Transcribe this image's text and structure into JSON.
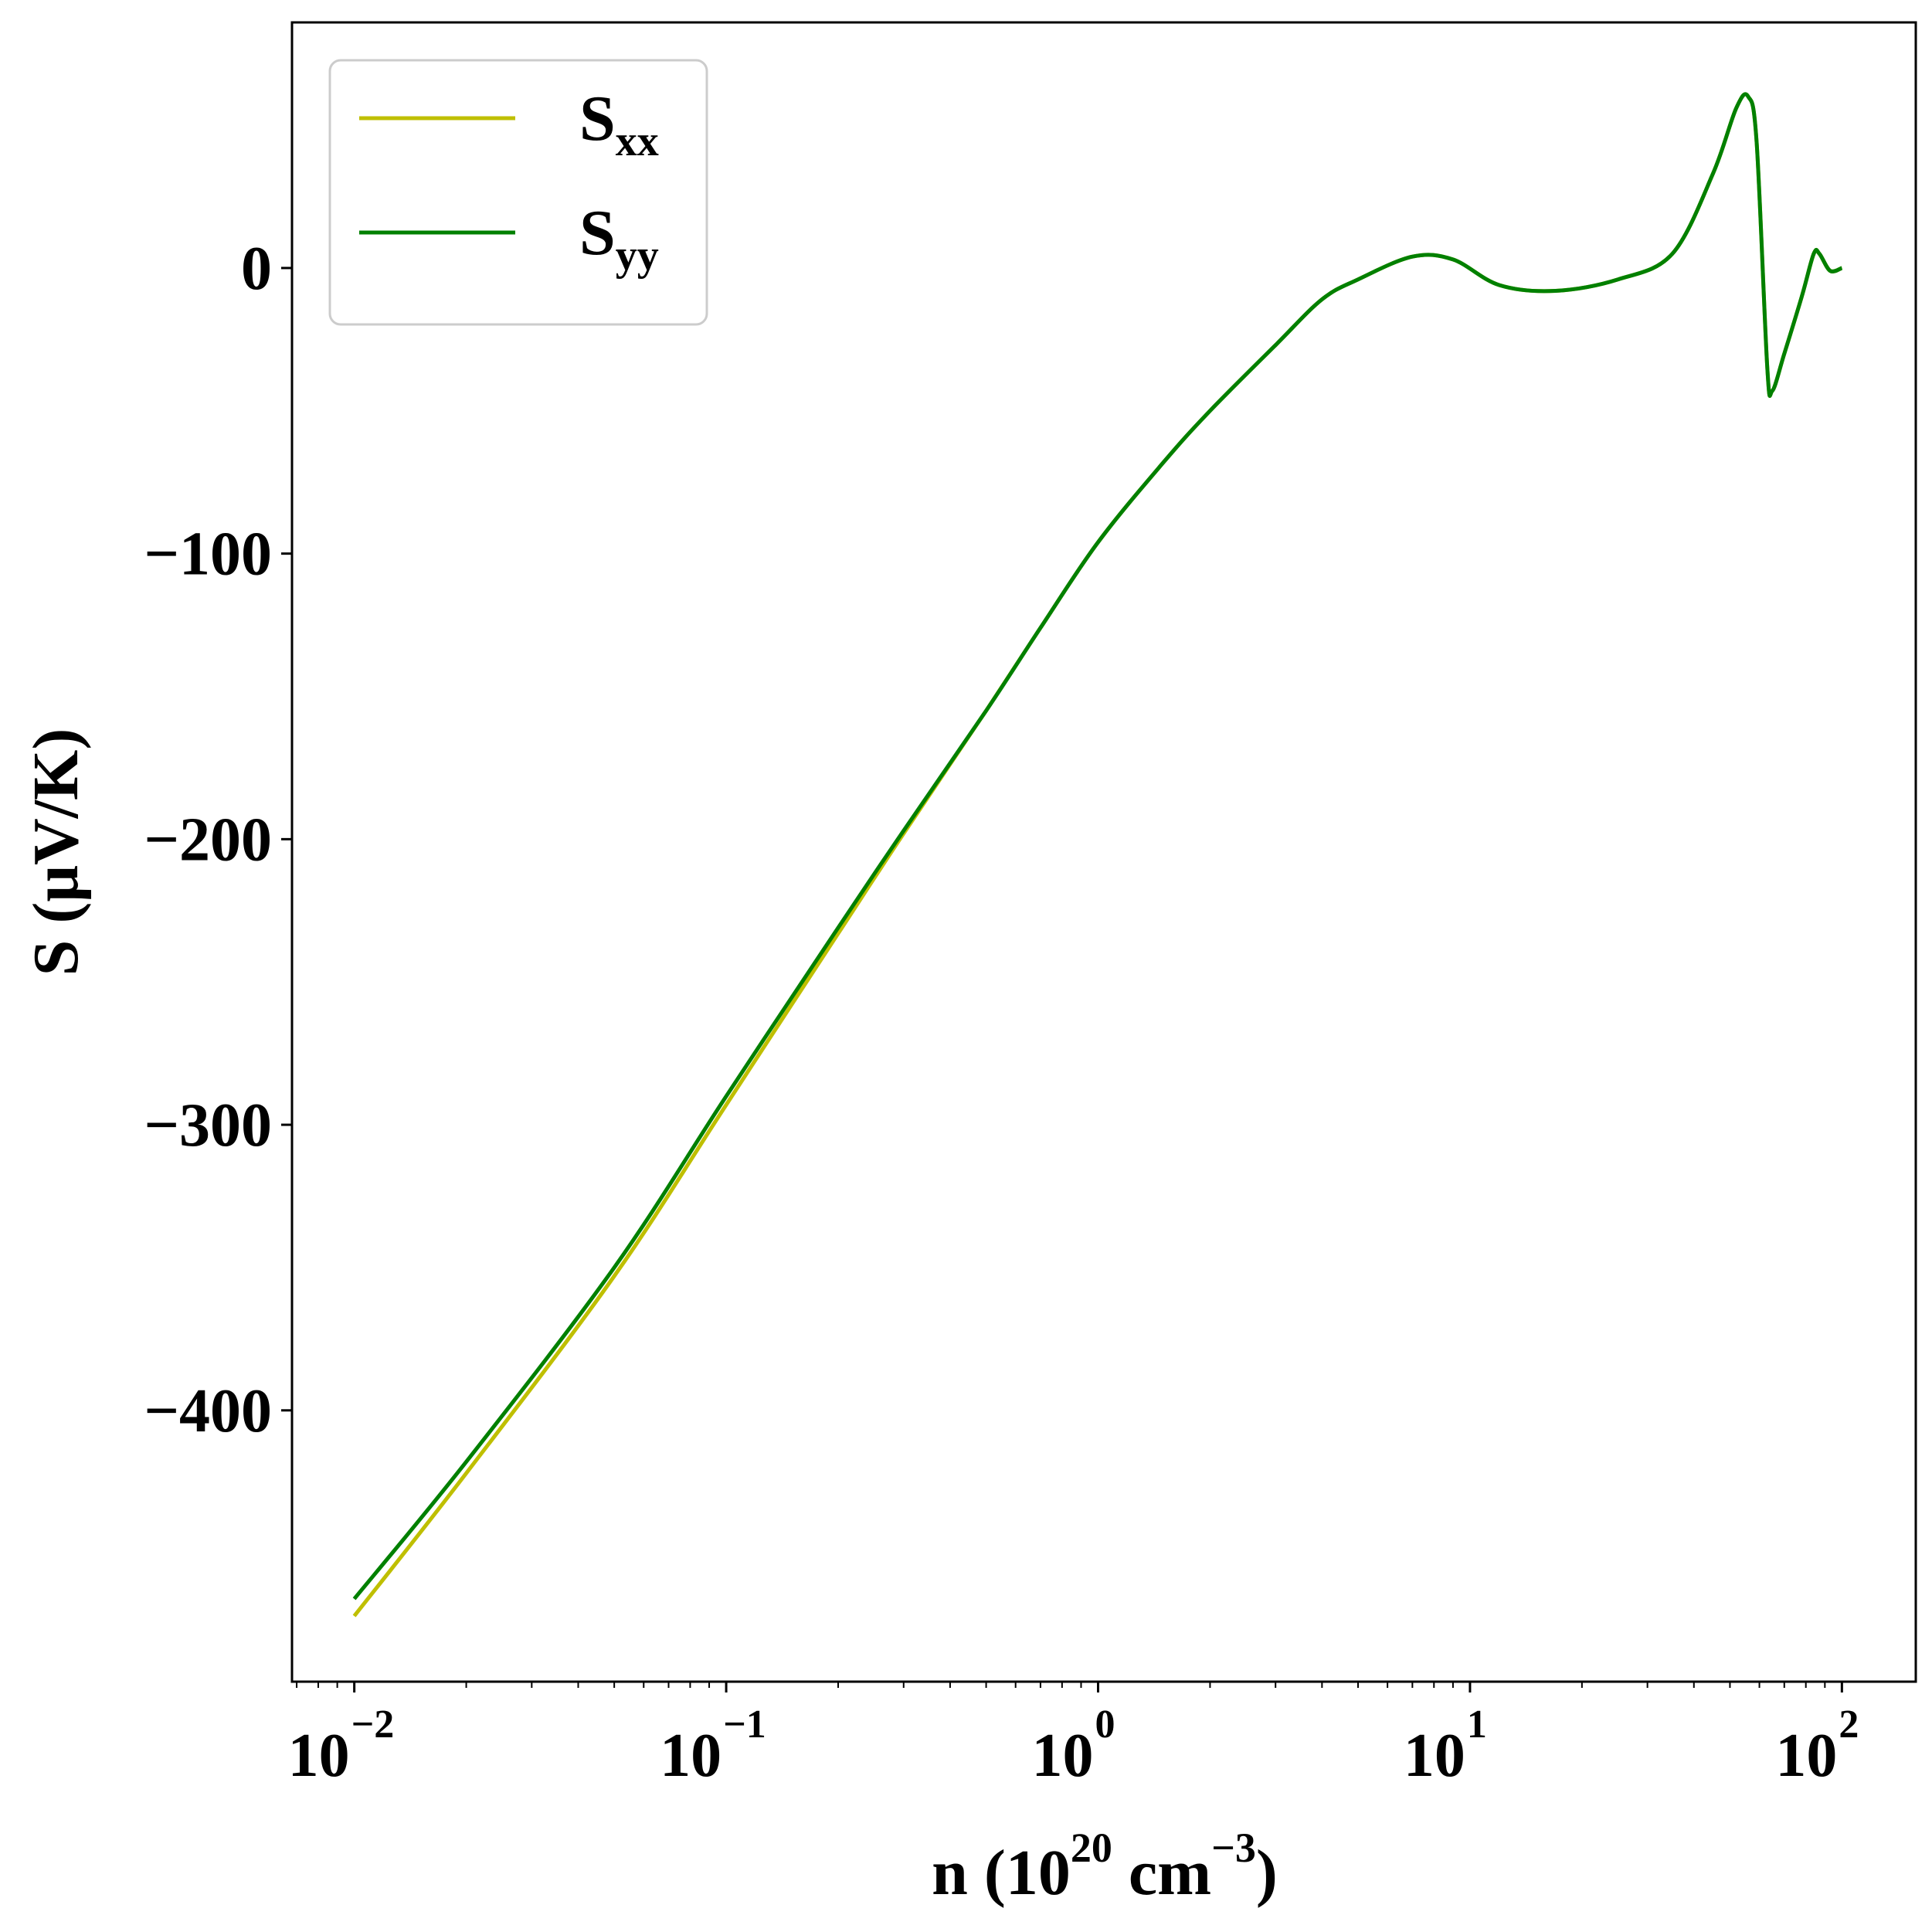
{
  "chart_data": {
    "type": "line",
    "xscale": "log",
    "xlim": [
      0.0068,
      158
    ],
    "ylim": [
      -495,
      86
    ],
    "xlabel": {
      "prefix": "n (10",
      "sup1": "20",
      "mid": " cm",
      "sup2": "−3",
      "suffix": ")"
    },
    "ylabel": "S (μV/K)",
    "x_ticks": [
      {
        "value": 0.01,
        "base": "10",
        "exp": "−2"
      },
      {
        "value": 0.1,
        "base": "10",
        "exp": "−1"
      },
      {
        "value": 1,
        "base": "10",
        "exp": "0"
      },
      {
        "value": 10,
        "base": "10",
        "exp": "1"
      },
      {
        "value": 100,
        "base": "10",
        "exp": "2"
      }
    ],
    "y_ticks": [
      {
        "value": 0,
        "label": "0"
      },
      {
        "value": -100,
        "label": "−100"
      },
      {
        "value": -200,
        "label": "−200"
      },
      {
        "value": -300,
        "label": "−300"
      },
      {
        "value": -400,
        "label": "−400"
      }
    ],
    "grid": false,
    "legend_position": "top-left",
    "series": [
      {
        "name": "xx",
        "label_main": "S",
        "label_sub": "xx",
        "color": "#bfbf00",
        "points": [
          [
            0.01,
            -472
          ],
          [
            0.02,
            -422
          ],
          [
            0.05,
            -353
          ],
          [
            0.1,
            -293
          ],
          [
            0.2,
            -233
          ],
          [
            0.3,
            -198
          ],
          [
            0.5,
            -155
          ],
          [
            0.7,
            -126
          ],
          [
            1.0,
            -96
          ],
          [
            1.5,
            -68
          ],
          [
            2.0,
            -50
          ],
          [
            3.0,
            -27
          ],
          [
            4.0,
            -11
          ],
          [
            5.0,
            -4
          ],
          [
            7.0,
            4
          ],
          [
            9.0,
            3
          ],
          [
            12.0,
            -6
          ],
          [
            17.0,
            -8
          ],
          [
            25.0,
            -4
          ],
          [
            35.0,
            5
          ],
          [
            45.0,
            33
          ],
          [
            52.0,
            56
          ],
          [
            56.0,
            60
          ],
          [
            59.0,
            44
          ],
          [
            63.0,
            -35
          ],
          [
            65.0,
            -43
          ],
          [
            70.0,
            -30
          ],
          [
            78.0,
            -10
          ],
          [
            84.0,
            5
          ],
          [
            87.0,
            5
          ],
          [
            93.0,
            -1
          ],
          [
            100.0,
            0
          ]
        ]
      },
      {
        "name": "yy",
        "label_main": "S",
        "label_sub": "yy",
        "color": "#008000",
        "points": [
          [
            0.01,
            -466
          ],
          [
            0.02,
            -418
          ],
          [
            0.05,
            -350
          ],
          [
            0.1,
            -290
          ],
          [
            0.2,
            -231
          ],
          [
            0.3,
            -197
          ],
          [
            0.5,
            -155
          ],
          [
            0.7,
            -126
          ],
          [
            1.0,
            -96
          ],
          [
            1.5,
            -68
          ],
          [
            2.0,
            -50
          ],
          [
            3.0,
            -27
          ],
          [
            4.0,
            -11
          ],
          [
            5.0,
            -4
          ],
          [
            7.0,
            4
          ],
          [
            9.0,
            3
          ],
          [
            12.0,
            -6
          ],
          [
            17.0,
            -8
          ],
          [
            25.0,
            -4
          ],
          [
            35.0,
            5
          ],
          [
            45.0,
            33
          ],
          [
            52.0,
            56
          ],
          [
            56.0,
            60
          ],
          [
            59.0,
            44
          ],
          [
            63.0,
            -35
          ],
          [
            65.0,
            -43
          ],
          [
            70.0,
            -30
          ],
          [
            78.0,
            -10
          ],
          [
            84.0,
            5
          ],
          [
            87.0,
            5
          ],
          [
            93.0,
            -1
          ],
          [
            100.0,
            0
          ]
        ]
      }
    ]
  }
}
